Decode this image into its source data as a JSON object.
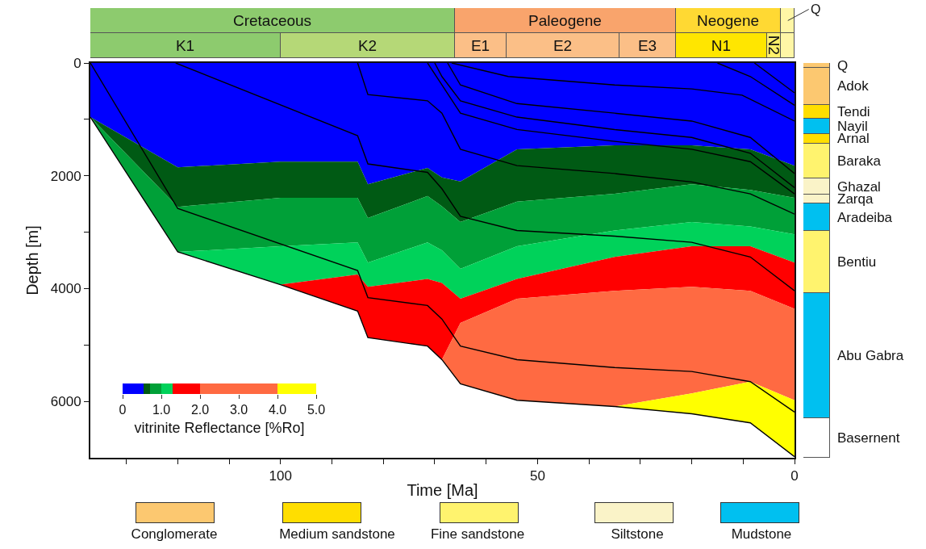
{
  "chart_data": [
    {
      "type": "area",
      "stacked": true,
      "xlabel": "Time [Ma]",
      "ylabel": "Depth [m]",
      "x": [
        137,
        120,
        100,
        85,
        83,
        71.4,
        68.6,
        65,
        54,
        35,
        20,
        8.6,
        0
      ],
      "xlim": [
        137,
        0
      ],
      "xticks": [
        {
          "value": 130,
          "label": null
        },
        {
          "value": 120,
          "label": null
        },
        {
          "value": 110,
          "label": null
        },
        100,
        {
          "value": 90,
          "label": null
        },
        {
          "value": 80,
          "label": null
        },
        {
          "value": 70,
          "label": null
        },
        {
          "value": 60,
          "label": null
        },
        50,
        {
          "value": 40,
          "label": null
        },
        {
          "value": 30,
          "label": null
        },
        {
          "value": 20,
          "label": null
        },
        {
          "value": 10,
          "label": null
        },
        0
      ],
      "ylim": [
        7000,
        0
      ],
      "yticks": [
        0,
        {
          "value": 1000,
          "label": null
        },
        2000,
        {
          "value": 3000,
          "label": null
        },
        4000,
        {
          "value": 5000,
          "label": null
        },
        6000
      ],
      "grid": false,
      "marker": "none",
      "line_style": "solid",
      "series": [
        {
          "color": "#0000ff",
          "values": [
            960,
            1850,
            1750,
            1750,
            2150,
            1860,
            2030,
            2100,
            1530,
            1460,
            1460,
            1530,
            1820
          ]
        },
        {
          "color": "#005a14",
          "values": [
            0,
            700,
            640,
            640,
            600,
            500,
            510,
            720,
            930,
            860,
            690,
            720,
            570
          ]
        },
        {
          "color": "#00a038",
          "values": [
            0,
            800,
            860,
            790,
            790,
            820,
            780,
            830,
            790,
            650,
            670,
            650,
            650
          ]
        },
        {
          "color": "#00d25a",
          "values": [
            0,
            0,
            680,
            570,
            430,
            650,
            580,
            530,
            580,
            470,
            430,
            350,
            500
          ]
        },
        {
          "color": "#ff0000",
          "values": [
            0,
            0,
            0,
            650,
            900,
            1190,
            1360,
            430,
            350,
            600,
            720,
            790,
            820
          ]
        },
        {
          "color": "#ff6a42",
          "values": [
            0,
            0,
            0,
            0,
            0,
            0,
            0,
            1080,
            1800,
            2050,
            1890,
            1610,
            1620
          ]
        },
        {
          "color": "#ffff00",
          "values": [
            0,
            0,
            0,
            0,
            0,
            0,
            0,
            0,
            0,
            0,
            360,
            730,
            1000
          ]
        },
        {
          "type": "line",
          "color": "#000000",
          "x": [
            137,
            120,
            85,
            83,
            71.4,
            68.6,
            65,
            54,
            35,
            20,
            8.6,
            0
          ],
          "values": [
            0,
            2580,
            3680,
            4160,
            4300,
            4540,
            5020,
            5260,
            5400,
            5470,
            5650,
            6190
          ]
        },
        {
          "type": "line",
          "color": "#000000",
          "x": [
            120.4,
            85,
            83,
            71.4,
            68.6,
            65,
            54,
            35,
            20,
            8.6,
            0
          ],
          "values": [
            0,
            1290,
            1790,
            1940,
            2230,
            2720,
            2970,
            3070,
            3180,
            3440,
            4040
          ]
        },
        {
          "type": "line",
          "color": "#000000",
          "x": [
            85,
            83,
            71.4,
            68.6,
            65,
            54,
            35,
            20,
            8.6,
            0
          ],
          "values": [
            0,
            560,
            670,
            890,
            1530,
            1820,
            1960,
            2110,
            2320,
            2680
          ]
        },
        {
          "type": "line",
          "color": "#000000",
          "x": [
            71.4,
            68.6,
            65,
            54,
            35,
            20,
            8.6,
            0
          ],
          "values": [
            0,
            390,
            890,
            1180,
            1390,
            1530,
            1750,
            2320
          ]
        },
        {
          "type": "line",
          "color": "#000000",
          "x": [
            70,
            68.6,
            65,
            54,
            35,
            20,
            8.6,
            0
          ],
          "values": [
            0,
            240,
            670,
            960,
            1180,
            1320,
            1600,
            2210
          ]
        },
        {
          "type": "line",
          "color": "#000000",
          "x": [
            67.5,
            65,
            54,
            35,
            20,
            8.6,
            0
          ],
          "values": [
            0,
            390,
            720,
            890,
            1030,
            1320,
            1960
          ]
        },
        {
          "type": "line",
          "color": "#000000",
          "x": [
            66.7,
            55.7,
            35,
            20,
            10.2,
            0
          ],
          "values": [
            0,
            240,
            390,
            460,
            570,
            1030
          ]
        },
        {
          "type": "line",
          "color": "#000000",
          "x": [
            15,
            8.6,
            0
          ],
          "values": [
            0,
            240,
            750
          ]
        },
        {
          "type": "line",
          "color": "#000000",
          "x": [
            7.8,
            0
          ],
          "values": [
            0,
            530
          ]
        }
      ]
    },
    {
      "type": "bar",
      "stacked": true,
      "categories": [
        null
      ],
      "ylim": [
        7000,
        0
      ],
      "tick_labels": false,
      "annotations": [
        "Conglomerate",
        "Medium sandstone",
        "Fine sandstone",
        "Siltstone",
        "Mudstone"
      ],
      "series": [
        {
          "name": "Q",
          "color": "#fcc870",
          "values": [
            90
          ]
        },
        {
          "name": "Adok",
          "color": "#fcc870",
          "values": [
            650
          ]
        },
        {
          "name": "Tendi",
          "color": "#ffde00",
          "values": [
            250
          ]
        },
        {
          "name": "Nayil",
          "color": "#00c0f0",
          "values": [
            270
          ]
        },
        {
          "name": "Arnal",
          "color": "#ffde00",
          "values": [
            170
          ]
        },
        {
          "name": "Baraka",
          "color": "#fff36e",
          "values": [
            620
          ]
        },
        {
          "name": "Ghazal",
          "color": "#faf3c8",
          "values": [
            290
          ]
        },
        {
          "name": "Zarqa",
          "color": "#faf3c8",
          "values": [
            150
          ]
        },
        {
          "name": "Aradeiba",
          "color": "#00c0f0",
          "values": [
            490
          ]
        },
        {
          "name": "Bentiu",
          "color": "#fff36e",
          "values": [
            1100
          ]
        },
        {
          "name": "Abu Gabra",
          "color": "#00c0f0",
          "values": [
            2220
          ]
        },
        {
          "name": "Basernent",
          "color": "#ffffff",
          "values": [
            700
          ]
        }
      ]
    },
    {
      "type": "bar",
      "orientation": "horizontal",
      "stacked": true,
      "categories": [
        null,
        null
      ],
      "xlim": [
        137,
        0
      ],
      "tick_labels": false,
      "series": [
        {
          "name": "Q",
          "color": "#fff6a6",
          "values": [
            2.6,
            2.6
          ]
        },
        {
          "name": "Neogene",
          "color": "#ffd933",
          "values": [
            20.4,
            null
          ]
        },
        {
          "name": "Paleogene",
          "color": "#f9a46c",
          "values": [
            43,
            null
          ]
        },
        {
          "name": "Cretaceous",
          "color": "#8dcb6e",
          "values": [
            71,
            null
          ]
        },
        {
          "name": "N2",
          "color": "#fff06a",
          "values": [
            null,
            2.7
          ]
        },
        {
          "name": "N1",
          "color": "#ffe600",
          "values": [
            null,
            17.7
          ]
        },
        {
          "name": "E3",
          "color": "#fbbf87",
          "values": [
            null,
            11
          ]
        },
        {
          "name": "E2",
          "color": "#fbbf87",
          "values": [
            null,
            22
          ]
        },
        {
          "name": "E1",
          "color": "#fbbf87",
          "values": [
            null,
            10
          ]
        },
        {
          "name": "K2",
          "color": "#b5d877",
          "values": [
            null,
            34
          ]
        },
        {
          "name": "K1",
          "color": "#8dcb6e",
          "values": [
            null,
            37
          ]
        }
      ]
    },
    {
      "type": "bar",
      "orientation": "horizontal",
      "stacked": true,
      "categories": [
        null
      ],
      "xlabel": "vitrinite Reflectance [%Ro]",
      "xlim": [
        0,
        5
      ],
      "xticks": [
        0,
        {
          "value": 1,
          "label": "1.0"
        },
        {
          "value": 2,
          "label": "2.0"
        },
        {
          "value": 3,
          "label": "3.0"
        },
        {
          "value": 4,
          "label": "4.0"
        },
        {
          "value": 5,
          "label": "5.0"
        }
      ],
      "tick_labels": "x",
      "series": [
        {
          "color": "#0000ff",
          "values": [
            0.55
          ]
        },
        {
          "color": "#005a14",
          "values": [
            0.15
          ]
        },
        {
          "color": "#00a038",
          "values": [
            0.3
          ]
        },
        {
          "color": "#00d25a",
          "values": [
            0.3
          ]
        },
        {
          "color": "#ff0000",
          "values": [
            0.7
          ]
        },
        {
          "color": "#ff6a42",
          "values": [
            2.0
          ]
        },
        {
          "color": "#ffff00",
          "values": [
            1.0
          ]
        }
      ]
    }
  ]
}
